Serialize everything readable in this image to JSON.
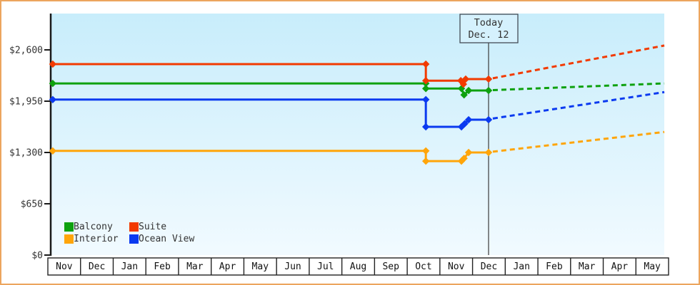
{
  "today_marker": {
    "line1": "Today",
    "line2": "Dec. 12"
  },
  "legend": {
    "items": [
      {
        "label": "Balcony",
        "color": "#0ea10e"
      },
      {
        "label": "Suite",
        "color": "#f23a00"
      },
      {
        "label": "Interior",
        "color": "#ffa50a"
      },
      {
        "label": "Ocean View",
        "color": "#0b3af0"
      }
    ]
  },
  "chart_data": {
    "type": "line",
    "title": "",
    "xlabel": "",
    "ylabel": "",
    "grid": false,
    "legend_position": "bottom-left",
    "x_tick_labels": [
      "Nov",
      "Dec",
      "Jan",
      "Feb",
      "Mar",
      "Apr",
      "May",
      "Jun",
      "Jul",
      "Aug",
      "Sep",
      "Oct",
      "Nov",
      "Dec",
      "Jan",
      "Feb",
      "Mar",
      "Apr",
      "May"
    ],
    "x_months_span": 19,
    "y_tick_labels": [
      "$0",
      "$650",
      "$1,300",
      "$1,950",
      "$2,600"
    ],
    "y_tick_values": [
      0,
      650,
      1300,
      1950,
      2600
    ],
    "ylim": [
      0,
      3060
    ],
    "today_x": 13.49,
    "colors": {
      "plot_bg_top": "#c8edfb",
      "plot_bg_bottom": "#f1faff",
      "axis": "#1a1a1a",
      "today_line": "#3a3a3a",
      "frame_border": "#eca55e",
      "text": "#333333"
    },
    "series": [
      {
        "name": "Interior",
        "slug": "interior",
        "color": "#ffa50a",
        "solid": [
          [
            0.15,
            1320
          ],
          [
            11.57,
            1320
          ],
          [
            11.57,
            1190
          ],
          [
            12.66,
            1190
          ],
          [
            12.74,
            1225
          ],
          [
            12.88,
            1300
          ],
          [
            13.49,
            1300
          ]
        ],
        "projected": [
          [
            13.62,
            1310
          ],
          [
            18.87,
            1560
          ]
        ]
      },
      {
        "name": "Ocean View",
        "slug": "ocean-view",
        "color": "#0b3af0",
        "solid": [
          [
            0.15,
            1970
          ],
          [
            11.57,
            1970
          ],
          [
            11.57,
            1625
          ],
          [
            12.66,
            1625
          ],
          [
            12.76,
            1665
          ],
          [
            12.88,
            1715
          ],
          [
            13.49,
            1715
          ]
        ],
        "projected": [
          [
            13.62,
            1730
          ],
          [
            18.87,
            2065
          ]
        ]
      },
      {
        "name": "Balcony",
        "slug": "balcony",
        "color": "#0ea10e",
        "solid": [
          [
            0.15,
            2175
          ],
          [
            11.57,
            2175
          ],
          [
            11.57,
            2110
          ],
          [
            12.66,
            2110
          ],
          [
            12.74,
            2030
          ],
          [
            12.88,
            2085
          ],
          [
            13.49,
            2085
          ]
        ],
        "projected": [
          [
            13.62,
            2090
          ],
          [
            18.87,
            2175
          ]
        ]
      },
      {
        "name": "Suite",
        "slug": "suite",
        "color": "#f23a00",
        "solid": [
          [
            0.15,
            2420
          ],
          [
            11.57,
            2420
          ],
          [
            11.57,
            2210
          ],
          [
            12.64,
            2210
          ],
          [
            12.72,
            2165
          ],
          [
            12.79,
            2230
          ],
          [
            13.49,
            2230
          ]
        ],
        "projected": [
          [
            13.62,
            2240
          ],
          [
            18.87,
            2655
          ]
        ]
      }
    ]
  }
}
